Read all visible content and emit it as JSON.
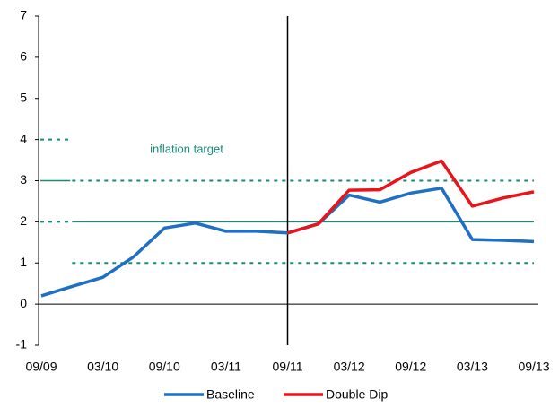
{
  "chart_data": {
    "type": "line",
    "categories": [
      "09/09",
      null,
      "03/10",
      null,
      "09/10",
      null,
      "03/11",
      null,
      "09/11",
      null,
      "03/12",
      null,
      "09/12",
      null,
      "03/13",
      null,
      "09/13"
    ],
    "series": [
      {
        "name": "Baseline",
        "color": "#1f6fc5",
        "values": [
          0.2,
          0.43,
          0.65,
          1.15,
          1.85,
          1.97,
          1.77,
          1.77,
          1.73,
          1.95,
          2.65,
          2.48,
          2.7,
          2.82,
          1.57,
          1.55,
          1.52
        ]
      },
      {
        "name": "Double Dip",
        "color": "#e8141b",
        "values": [
          null,
          null,
          null,
          null,
          null,
          null,
          null,
          null,
          1.73,
          1.95,
          2.77,
          2.78,
          3.2,
          3.48,
          2.38,
          2.58,
          2.73
        ]
      }
    ],
    "ylim": [
      -1,
      7
    ],
    "yticks": [
      -1,
      0,
      1,
      2,
      3,
      4,
      5,
      6,
      7
    ],
    "reference_color": "#1a8a7a",
    "hlines": [
      {
        "value": 1,
        "dashed": true
      },
      {
        "value": 2,
        "dashed": false
      },
      {
        "value": 3,
        "dashed": true
      }
    ],
    "left_marks": [
      {
        "value": 2,
        "dashed": true
      },
      {
        "value": 3,
        "dashed": false
      },
      {
        "value": 4,
        "dashed": true
      }
    ],
    "vline": "09/11",
    "annotation": "inflation target"
  }
}
